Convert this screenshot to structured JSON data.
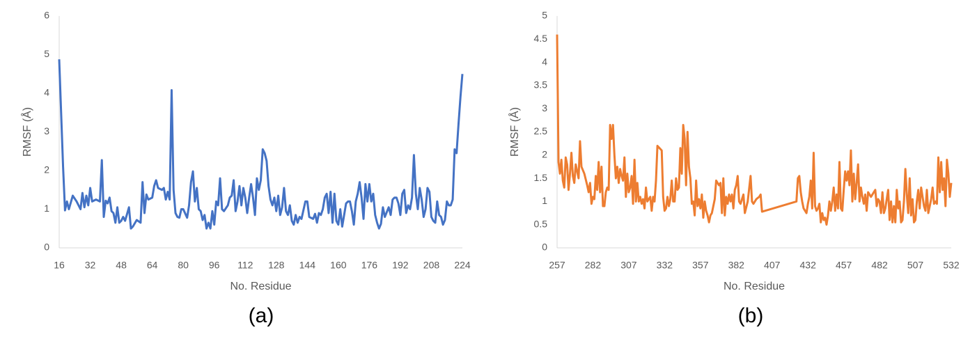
{
  "chart_data": [
    {
      "type": "line",
      "caption": "(a)",
      "x_label": "No. Residue",
      "y_label": "RMSF (Å)",
      "color": "#4472c4",
      "grid": false,
      "xlim": [
        16,
        224
      ],
      "xticks": [
        16,
        32,
        48,
        64,
        80,
        96,
        112,
        128,
        144,
        160,
        176,
        192,
        208,
        224
      ],
      "ylim": [
        0,
        6
      ],
      "yticks": [
        0,
        1,
        2,
        3,
        4,
        5,
        6
      ],
      "x": [
        16,
        18,
        19,
        20,
        21,
        23,
        25,
        27,
        28,
        29,
        30,
        31,
        32,
        33,
        35,
        37,
        38,
        39,
        40,
        41,
        42,
        43,
        44,
        45,
        46,
        47,
        48,
        49,
        50,
        52,
        53,
        54,
        56,
        58,
        59,
        60,
        61,
        62,
        64,
        65,
        66,
        67,
        69,
        70,
        71,
        72,
        73,
        74,
        75,
        76,
        77,
        78,
        79,
        80,
        82,
        83,
        84,
        85,
        86,
        87,
        88,
        89,
        90,
        91,
        92,
        93,
        94,
        95,
        96,
        97,
        98,
        99,
        100,
        101,
        103,
        104,
        105,
        106,
        107,
        108,
        109,
        110,
        111,
        112,
        113,
        114,
        115,
        116,
        117,
        118,
        119,
        120,
        121,
        122,
        123,
        124,
        125,
        126,
        127,
        128,
        129,
        130,
        131,
        132,
        133,
        134,
        135,
        136,
        137,
        138,
        139,
        140,
        141,
        143,
        144,
        145,
        147,
        148,
        149,
        150,
        151,
        152,
        153,
        154,
        155,
        156,
        157,
        158,
        159,
        160,
        161,
        162,
        164,
        165,
        166,
        167,
        168,
        169,
        170,
        171,
        172,
        173,
        174,
        175,
        176,
        177,
        178,
        179,
        180,
        181,
        182,
        183,
        184,
        186,
        187,
        188,
        189,
        190,
        191,
        192,
        193,
        194,
        195,
        196,
        197,
        198,
        199,
        200,
        201,
        202,
        203,
        204,
        205,
        206,
        207,
        208,
        209,
        210,
        211,
        212,
        213,
        214,
        215,
        216,
        217,
        218,
        219,
        220,
        221,
        222,
        223,
        224
      ],
      "values": [
        4.88,
        2.1,
        0.97,
        1.2,
        1.0,
        1.35,
        1.2,
        1.0,
        1.42,
        1.05,
        1.35,
        1.1,
        1.55,
        1.2,
        1.25,
        1.2,
        2.27,
        0.8,
        1.22,
        1.15,
        1.3,
        0.95,
        0.9,
        0.65,
        1.05,
        0.65,
        0.7,
        0.8,
        0.7,
        1.05,
        0.5,
        0.55,
        0.72,
        0.65,
        1.7,
        0.9,
        1.38,
        1.25,
        1.3,
        1.6,
        1.75,
        1.55,
        1.5,
        1.55,
        1.25,
        1.45,
        1.25,
        4.08,
        1.5,
        0.9,
        0.8,
        0.78,
        1.0,
        1.0,
        0.78,
        1.1,
        1.7,
        1.98,
        1.2,
        1.55,
        1.0,
        0.95,
        0.72,
        0.85,
        0.5,
        0.65,
        0.5,
        0.95,
        0.6,
        1.2,
        1.1,
        1.8,
        1.0,
        0.95,
        1.1,
        1.3,
        1.35,
        1.75,
        0.95,
        1.2,
        1.6,
        1.1,
        1.55,
        1.3,
        0.9,
        1.3,
        1.65,
        1.3,
        0.85,
        1.8,
        1.5,
        1.75,
        2.55,
        2.45,
        2.25,
        1.6,
        1.25,
        1.1,
        1.3,
        0.95,
        1.35,
        0.85,
        1.05,
        1.55,
        0.95,
        0.85,
        1.1,
        0.7,
        0.6,
        0.85,
        0.65,
        0.8,
        0.75,
        1.2,
        1.2,
        0.8,
        0.75,
        0.88,
        0.65,
        0.9,
        0.85,
        1.0,
        1.3,
        1.4,
        0.9,
        1.45,
        0.65,
        1.4,
        0.7,
        0.6,
        1.0,
        0.55,
        1.15,
        1.2,
        1.2,
        0.95,
        0.6,
        1.2,
        1.4,
        1.7,
        1.3,
        0.75,
        1.65,
        1.2,
        1.65,
        1.2,
        1.4,
        0.85,
        0.65,
        0.5,
        0.62,
        1.05,
        0.8,
        1.05,
        0.85,
        1.25,
        1.3,
        1.3,
        1.15,
        0.85,
        1.4,
        1.5,
        0.9,
        1.1,
        1.0,
        1.3,
        2.4,
        1.4,
        1.0,
        1.55,
        1.25,
        0.8,
        1.0,
        1.55,
        1.45,
        0.8,
        0.7,
        0.65,
        1.2,
        0.85,
        0.8,
        0.6,
        0.72,
        1.2,
        1.1,
        1.1,
        1.25,
        2.55,
        2.45,
        3.2,
        3.9,
        4.5
      ]
    },
    {
      "type": "line",
      "caption": "(b)",
      "x_label": "No. Residue",
      "y_label": "RMSF (Å)",
      "color": "#ed7d31",
      "grid": false,
      "xlim": [
        257,
        532
      ],
      "xticks": [
        257,
        282,
        307,
        332,
        357,
        382,
        407,
        432,
        457,
        482,
        507,
        532
      ],
      "ylim": [
        0,
        5
      ],
      "yticks": [
        0,
        0.5,
        1,
        1.5,
        2,
        2.5,
        3,
        3.5,
        4,
        4.5,
        5
      ],
      "x": [
        257,
        258,
        259,
        260,
        261,
        262,
        263,
        264,
        265,
        266,
        267,
        268,
        269,
        270,
        271,
        272,
        273,
        274,
        276,
        278,
        279,
        280,
        281,
        282,
        283,
        284,
        285,
        286,
        287,
        288,
        289,
        290,
        291,
        292,
        293,
        294,
        295,
        296,
        297,
        298,
        299,
        300,
        301,
        302,
        303,
        304,
        305,
        306,
        307,
        308,
        309,
        310,
        311,
        312,
        313,
        314,
        315,
        316,
        317,
        318,
        319,
        320,
        321,
        322,
        323,
        324,
        325,
        326,
        327,
        330,
        331,
        332,
        333,
        334,
        335,
        336,
        337,
        338,
        339,
        340,
        341,
        342,
        343,
        344,
        345,
        346,
        347,
        348,
        349,
        350,
        351,
        352,
        353,
        354,
        355,
        356,
        357,
        358,
        359,
        360,
        361,
        362,
        363,
        364,
        365,
        366,
        367,
        368,
        369,
        370,
        371,
        372,
        373,
        374,
        375,
        376,
        377,
        378,
        379,
        380,
        381,
        382,
        383,
        384,
        385,
        386,
        387,
        388,
        390,
        392,
        393,
        394,
        396,
        398,
        399,
        400,
        424,
        425,
        426,
        427,
        428,
        429,
        430,
        431,
        432,
        433,
        434,
        435,
        436,
        437,
        438,
        439,
        440,
        441,
        442,
        443,
        444,
        445,
        446,
        447,
        448,
        449,
        450,
        451,
        452,
        453,
        454,
        455,
        456,
        457,
        458,
        459,
        460,
        461,
        462,
        463,
        464,
        465,
        466,
        467,
        468,
        469,
        470,
        471,
        472,
        473,
        474,
        475,
        476,
        477,
        478,
        479,
        480,
        481,
        482,
        483,
        484,
        485,
        486,
        487,
        488,
        489,
        490,
        491,
        492,
        493,
        494,
        495,
        496,
        497,
        498,
        499,
        500,
        501,
        502,
        503,
        504,
        505,
        506,
        507,
        508,
        509,
        510,
        511,
        512,
        513,
        514,
        515,
        516,
        517,
        518,
        519,
        520,
        521,
        522,
        523,
        524,
        525,
        526,
        527,
        528,
        529,
        530,
        531,
        532
      ],
      "values": [
        4.6,
        1.85,
        1.6,
        1.9,
        1.45,
        1.3,
        1.95,
        1.8,
        1.25,
        1.6,
        2.05,
        1.55,
        1.4,
        1.8,
        1.65,
        1.5,
        2.3,
        1.75,
        1.6,
        1.35,
        1.2,
        1.4,
        0.95,
        1.1,
        1.05,
        1.55,
        1.25,
        1.85,
        1.2,
        1.75,
        0.9,
        0.9,
        1.2,
        1.3,
        1.25,
        2.65,
        2.35,
        2.65,
        2.0,
        1.5,
        1.75,
        1.4,
        1.7,
        1.55,
        1.45,
        1.95,
        1.1,
        1.6,
        1.2,
        1.3,
        1.55,
        0.95,
        1.9,
        1.0,
        1.4,
        1.0,
        1.1,
        0.95,
        1.05,
        0.85,
        1.3,
        1.0,
        1.05,
        1.1,
        0.8,
        1.1,
        1.0,
        1.45,
        2.2,
        2.1,
        1.1,
        0.8,
        0.85,
        1.1,
        0.9,
        1.05,
        1.45,
        1.0,
        1.0,
        1.5,
        1.25,
        1.3,
        2.15,
        1.6,
        2.65,
        2.35,
        1.35,
        2.5,
        1.75,
        1.5,
        0.95,
        1.0,
        0.7,
        1.45,
        0.9,
        1.05,
        0.85,
        1.15,
        0.65,
        1.0,
        0.8,
        0.7,
        0.55,
        0.7,
        0.75,
        0.9,
        1.05,
        1.45,
        1.4,
        1.35,
        1.4,
        0.75,
        1.5,
        0.7,
        1.1,
        0.95,
        1.15,
        1.0,
        1.15,
        0.85,
        1.25,
        1.35,
        1.55,
        1.0,
        0.95,
        1.05,
        1.15,
        0.75,
        1.0,
        1.55,
        1.0,
        0.95,
        1.05,
        1.1,
        1.15,
        0.78,
        1.0,
        1.5,
        1.55,
        1.2,
        1.0,
        0.85,
        0.8,
        0.75,
        0.95,
        1.1,
        1.45,
        0.85,
        2.05,
        0.9,
        0.8,
        0.85,
        0.95,
        0.55,
        0.75,
        0.6,
        0.65,
        0.5,
        0.7,
        1.0,
        0.8,
        1.0,
        1.3,
        0.8,
        1.15,
        0.85,
        1.85,
        0.85,
        0.8,
        1.25,
        1.65,
        1.45,
        1.65,
        1.35,
        2.1,
        1.0,
        1.6,
        1.05,
        1.4,
        1.8,
        1.0,
        1.3,
        1.1,
        0.95,
        1.15,
        0.8,
        1.2,
        1.15,
        1.1,
        1.15,
        1.2,
        1.25,
        0.9,
        1.05,
        1.0,
        0.75,
        1.2,
        0.75,
        0.85,
        1.05,
        1.25,
        0.6,
        1.0,
        0.55,
        0.9,
        0.55,
        1.25,
        0.85,
        1.0,
        0.55,
        0.6,
        1.0,
        1.7,
        1.15,
        0.75,
        1.5,
        0.7,
        1.05,
        0.55,
        0.6,
        1.0,
        1.25,
        0.85,
        1.3,
        1.1,
        0.9,
        0.8,
        1.25,
        0.75,
        0.9,
        1.05,
        1.3,
        0.95,
        1.0,
        0.95,
        1.95,
        1.2,
        1.85,
        1.25,
        1.5,
        0.9,
        1.9,
        1.6,
        1.1,
        1.4
      ]
    }
  ]
}
